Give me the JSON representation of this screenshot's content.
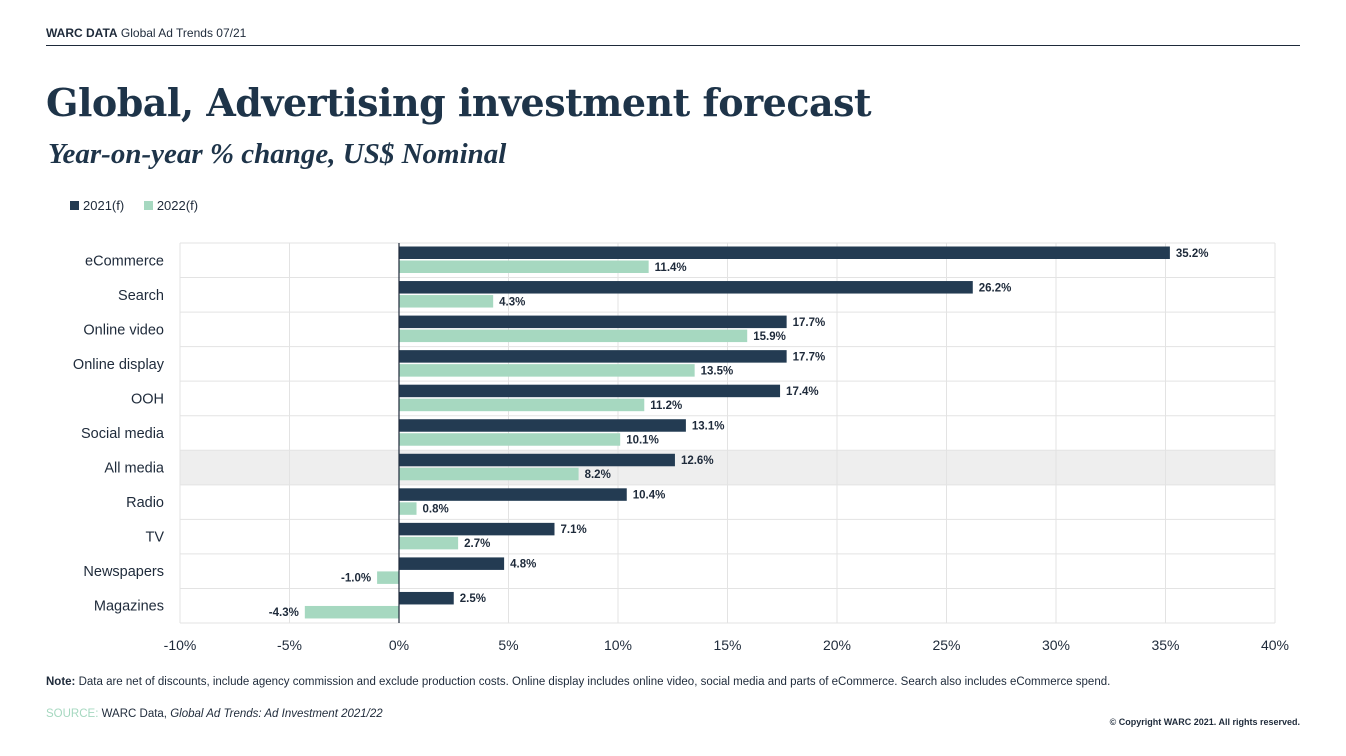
{
  "header": {
    "brand": "WARC DATA",
    "subtitle": "Global Ad Trends 07/21"
  },
  "title": "Global, Advertising investment forecast",
  "subtitle": "Year-on-year % change, US$ Nominal",
  "legend": [
    {
      "label": "2021(f)",
      "color": "#233b52"
    },
    {
      "label": "2022(f)",
      "color": "#a6d8c0"
    }
  ],
  "chart_data": {
    "type": "bar",
    "orientation": "horizontal",
    "categories": [
      "eCommerce",
      "Search",
      "Online video",
      "Online display",
      "OOH",
      "Social media",
      "All media",
      "Radio",
      "TV",
      "Newspapers",
      "Magazines"
    ],
    "highlight_category": "All media",
    "series": [
      {
        "name": "2021(f)",
        "color": "#233b52",
        "values": [
          35.2,
          26.2,
          17.7,
          17.7,
          17.4,
          13.1,
          12.6,
          10.4,
          7.1,
          4.8,
          2.5
        ],
        "labels": [
          "35.2%",
          "26.2%",
          "17.7%",
          "17.7%",
          "17.4%",
          "13.1%",
          "12.6%",
          "10.4%",
          "7.1%",
          "4.8%",
          "2.5%"
        ]
      },
      {
        "name": "2022(f)",
        "color": "#a6d8c0",
        "values": [
          11.4,
          4.3,
          15.9,
          13.5,
          11.2,
          10.1,
          8.2,
          0.8,
          2.7,
          -1.0,
          -4.3
        ],
        "labels": [
          "11.4%",
          "4.3%",
          "15.9%",
          "13.5%",
          "11.2%",
          "10.1%",
          "8.2%",
          "0.8%",
          "2.7%",
          "-1.0%",
          "-4.3%"
        ]
      }
    ],
    "xlim": [
      -10,
      40
    ],
    "xticks": [
      -10,
      -5,
      0,
      5,
      10,
      15,
      20,
      25,
      30,
      35,
      40
    ],
    "xtick_labels": [
      "-10%",
      "-5%",
      "0%",
      "5%",
      "10%",
      "15%",
      "20%",
      "25%",
      "30%",
      "35%",
      "40%"
    ],
    "grid": true
  },
  "footer": {
    "note_label": "Note:",
    "note_text": "Data are net of discounts, include agency commission and exclude production costs. Online display includes online video, social media and parts of eCommerce. Search also includes eCommerce spend.",
    "source_label": "SOURCE:",
    "source_text": "WARC Data,",
    "source_title": "Global Ad Trends: Ad Investment 2021/22",
    "copyright": "© Copyright WARC 2021. All rights reserved."
  }
}
